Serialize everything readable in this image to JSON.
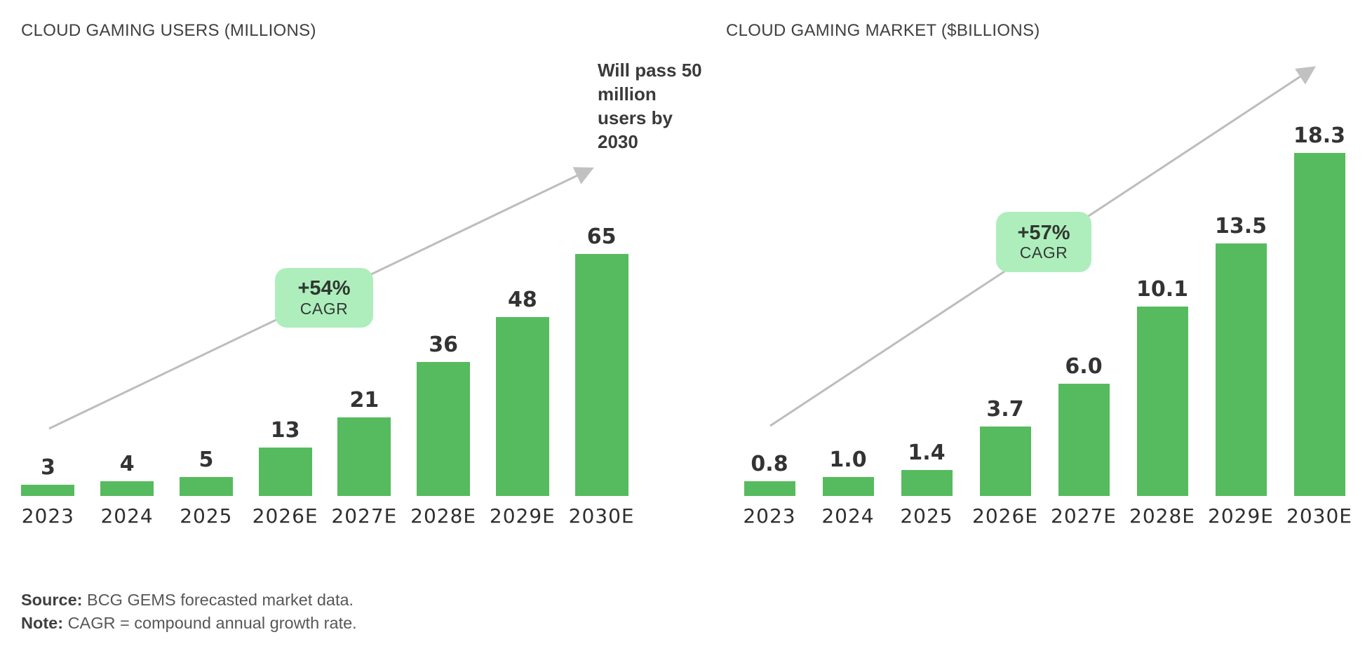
{
  "chart_data": [
    {
      "type": "bar",
      "title": "CLOUD GAMING USERS (MILLIONS)",
      "categories": [
        "2023",
        "2024",
        "2025",
        "2026E",
        "2027E",
        "2028E",
        "2029E",
        "2030E"
      ],
      "values": [
        3,
        4,
        5,
        13,
        21,
        36,
        48,
        65
      ],
      "value_labels": [
        "3",
        "4",
        "5",
        "13",
        "21",
        "36",
        "48",
        "65"
      ],
      "ylim": [
        0,
        70
      ],
      "grid": false,
      "legend": "none",
      "bar_color": "#56bb5e",
      "growth_badge": {
        "rate": "+54%",
        "label": "CAGR"
      },
      "annotation": "Will pass 50 million users by 2030",
      "trend_arrow": true
    },
    {
      "type": "bar",
      "title": "CLOUD GAMING MARKET ($BILLIONS)",
      "categories": [
        "2023",
        "2024",
        "2025",
        "2026E",
        "2027E",
        "2028E",
        "2029E",
        "2030E"
      ],
      "values": [
        0.8,
        1.0,
        1.4,
        3.7,
        6.0,
        10.1,
        13.5,
        18.3
      ],
      "value_labels": [
        "0.8",
        "1.0",
        "1.4",
        "3.7",
        "6.0",
        "10.1",
        "13.5",
        "18.3"
      ],
      "ylim": [
        0,
        20
      ],
      "grid": false,
      "legend": "none",
      "bar_color": "#56bb5e",
      "growth_badge": {
        "rate": "+57%",
        "label": "CAGR"
      },
      "annotation": "",
      "trend_arrow": true
    }
  ],
  "footnote": {
    "source_label": "Source:",
    "source_text": " BCG GEMS forecasted market data.",
    "note_label": "Note:",
    "note_text": " CAGR = compound annual growth rate."
  },
  "colors": {
    "bar_green": "#56bb5e",
    "badge_green": "#aeeebd",
    "arrow_gray": "#bdbdbd",
    "text_dark": "#3a3a3a",
    "text_gray": "#575757"
  }
}
